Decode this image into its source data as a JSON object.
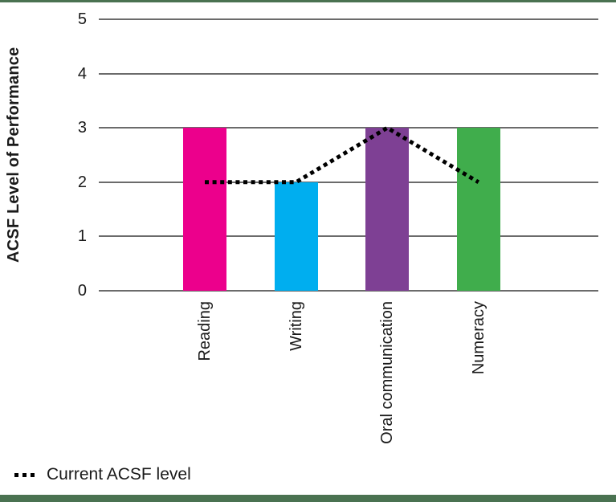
{
  "frame": {
    "border_color": "#4A7251",
    "background": "#FFFFFF"
  },
  "chart_data": {
    "type": "bar",
    "categories": [
      "Reading",
      "Writing",
      "Oral communication",
      "Numeracy"
    ],
    "series": [
      {
        "type": "bar",
        "values": [
          3,
          2,
          3,
          3
        ],
        "colors": [
          "#EC008C",
          "#00AEEF",
          "#7E4094",
          "#40AD4C"
        ]
      },
      {
        "type": "line",
        "name": "Current ACSF level",
        "line_style": "dotted",
        "color": "#000000",
        "values": [
          2,
          2,
          3,
          2
        ]
      }
    ],
    "ylabel": "ACSF Level of Performance",
    "ylim": [
      0,
      5
    ],
    "yticks": [
      0,
      1,
      2,
      3,
      4,
      5
    ],
    "grid": true,
    "gridline_color": "#6B6B6B",
    "legend_position": "bottom-left"
  },
  "legend": {
    "label": "Current ACSF level"
  }
}
